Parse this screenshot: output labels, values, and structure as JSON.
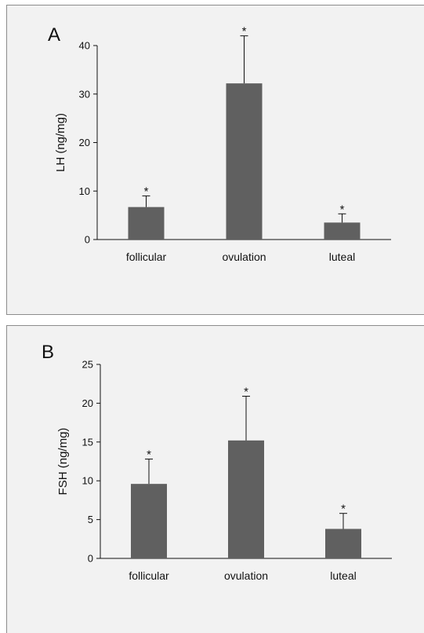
{
  "chart_data": [
    {
      "type": "bar",
      "panel_label": "A",
      "categories": [
        "follicular",
        "ovulation",
        "luteal"
      ],
      "values": [
        6.7,
        32.2,
        3.5
      ],
      "error": [
        2.3,
        9.8,
        1.8
      ],
      "annotations": [
        "*",
        "*",
        "*"
      ],
      "ylabel": "LH (ng/mg)",
      "xlabel": "",
      "ylim": [
        0,
        40
      ],
      "yticks": [
        0,
        10,
        20,
        30,
        40
      ],
      "bar_color": "#606060",
      "grid": false
    },
    {
      "type": "bar",
      "panel_label": "B",
      "categories": [
        "follicular",
        "ovulation",
        "luteal"
      ],
      "values": [
        9.6,
        15.2,
        3.8
      ],
      "error": [
        3.2,
        5.7,
        2.0
      ],
      "annotations": [
        "*",
        "*",
        "*"
      ],
      "ylabel": "FSH (ng/mg)",
      "xlabel": "",
      "ylim": [
        0,
        25
      ],
      "yticks": [
        0,
        5,
        10,
        15,
        20,
        25
      ],
      "bar_color": "#606060",
      "grid": false
    }
  ]
}
